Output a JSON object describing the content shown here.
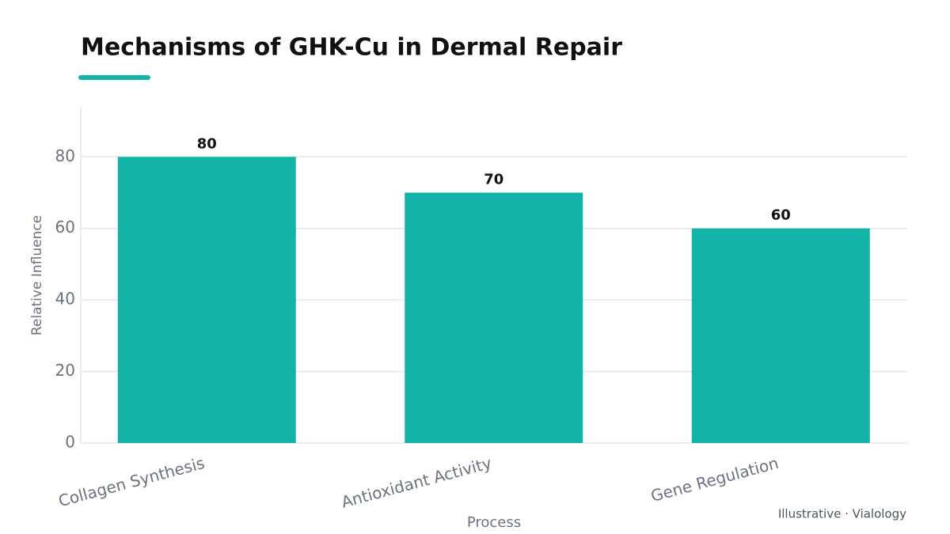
{
  "chart_data": {
    "type": "bar",
    "title": "Mechanisms of GHK-Cu in Dermal Repair",
    "categories": [
      "Collagen Synthesis",
      "Antioxidant Activity",
      "Gene Regulation"
    ],
    "values": [
      80,
      70,
      60
    ],
    "color": "#14b3a8",
    "xlabel": "Process",
    "ylabel": "Relative Influence",
    "ylim": [
      0,
      94
    ],
    "yticks": [
      0,
      20,
      40,
      60,
      80
    ],
    "grid": true,
    "footer": "Illustrative · Vialology"
  }
}
